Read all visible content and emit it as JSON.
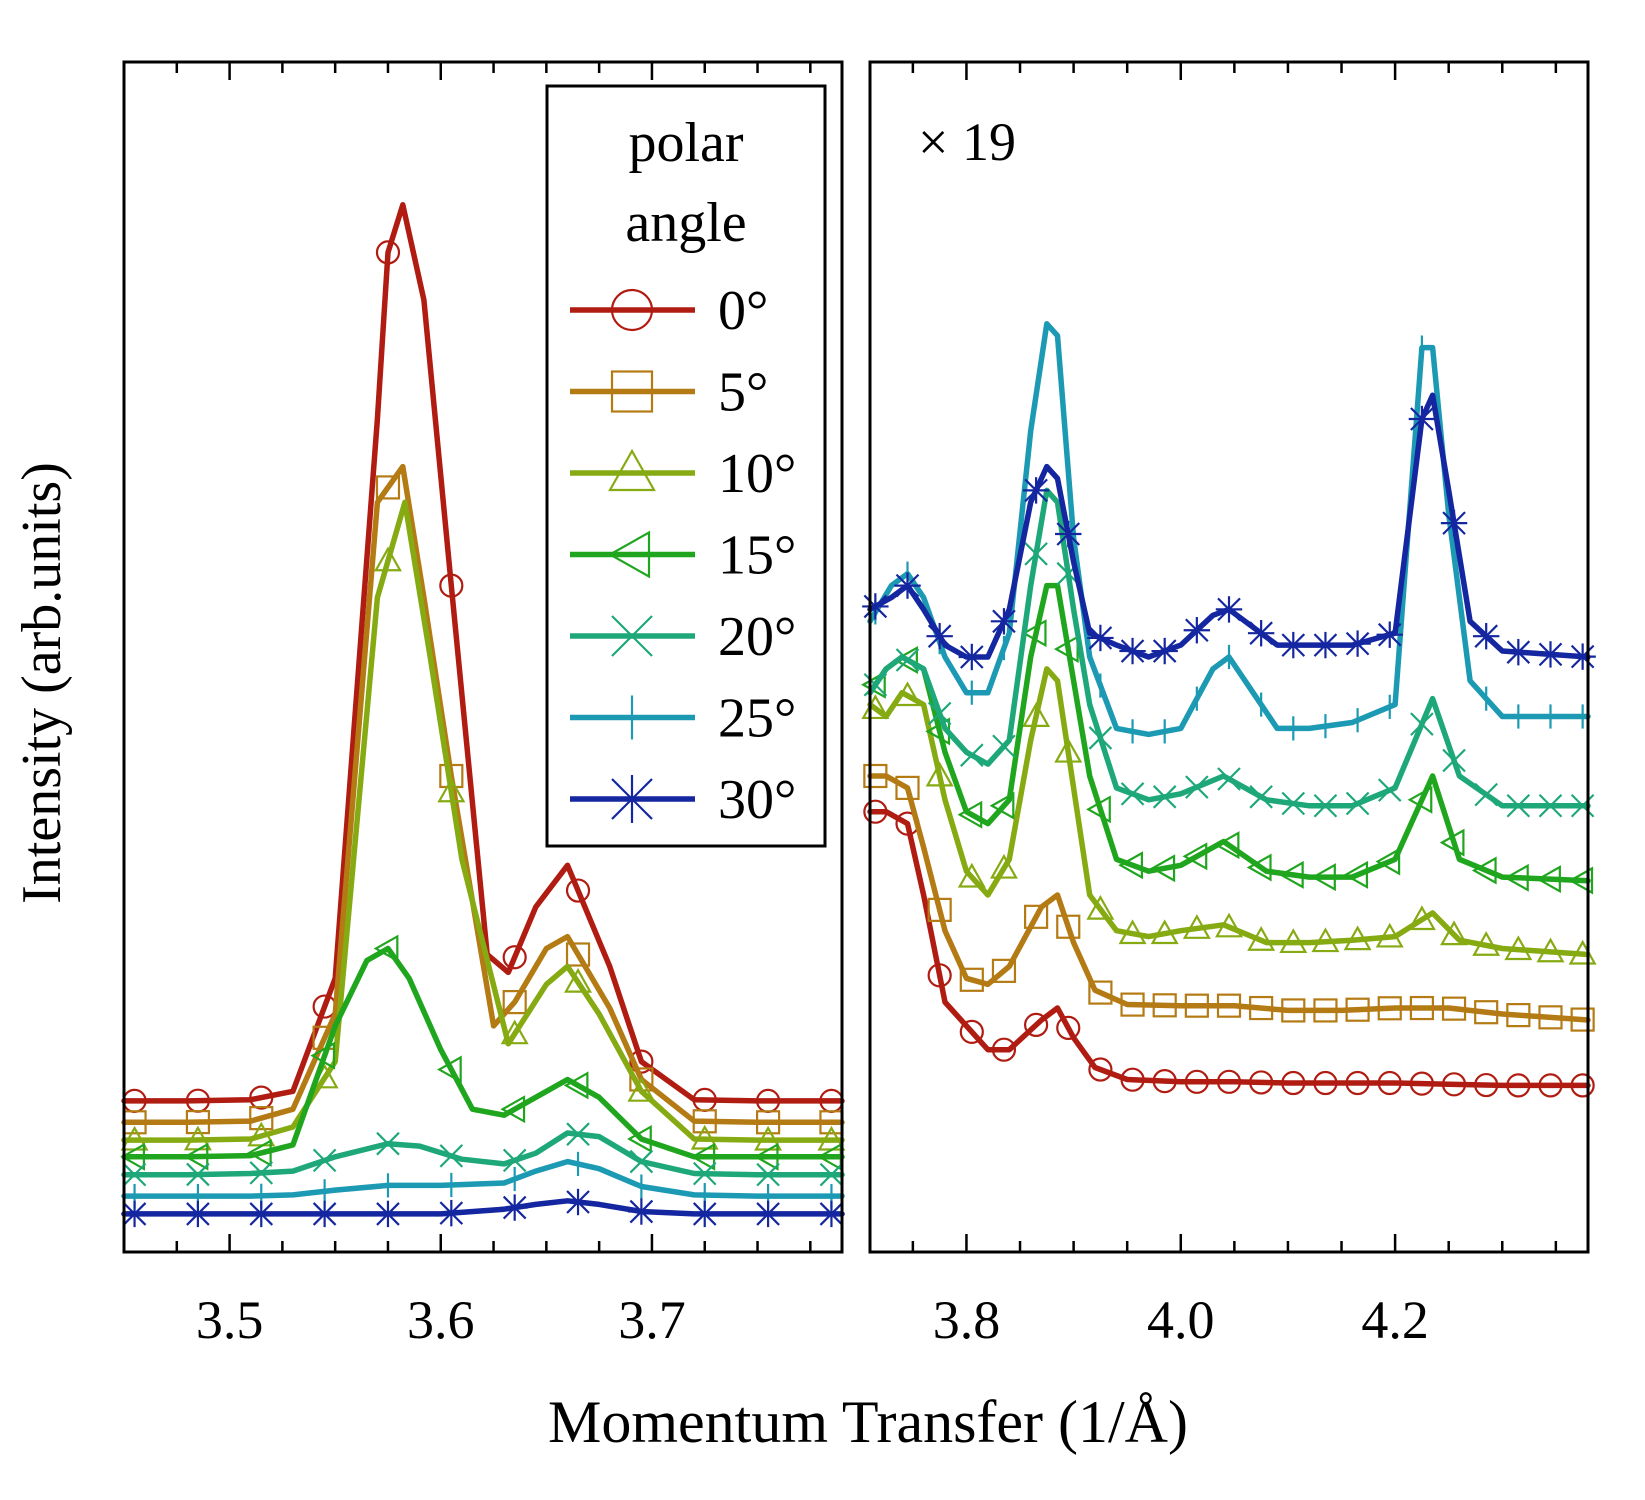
{
  "chart_data": {
    "type": "line",
    "xlabel": "Momentum Transfer  (1/Å)",
    "ylabel": "Intensity  (arb.units)",
    "legend": {
      "title_line1": "polar",
      "title_line2": "angle",
      "placement": "top-right of left panel"
    },
    "series_meta": [
      {
        "name": "0°",
        "color": "#b01c12",
        "marker": "circle"
      },
      {
        "name": "5°",
        "color": "#b47a14",
        "marker": "square"
      },
      {
        "name": "10°",
        "color": "#86aa12",
        "marker": "triangle-up"
      },
      {
        "name": "15°",
        "color": "#20a61e",
        "marker": "triangle-left"
      },
      {
        "name": "20°",
        "color": "#1ea87a",
        "marker": "x"
      },
      {
        "name": "25°",
        "color": "#1c9ab4",
        "marker": "plus"
      },
      {
        "name": "30°",
        "color": "#1426a0",
        "marker": "star"
      }
    ],
    "panels": [
      {
        "id": "left",
        "xlim": [
          3.45,
          3.79
        ],
        "ylim": [
          0,
          1.0
        ],
        "ticks": [
          3.5,
          3.6,
          3.7
        ],
        "tick_labels": [
          "3.5",
          "3.6",
          "3.7"
        ],
        "scale_label": "",
        "series": [
          {
            "name": "0°",
            "x": [
              3.45,
              3.48,
              3.51,
              3.53,
              3.55,
              3.57,
              3.575,
              3.582,
              3.592,
              3.605,
              3.622,
              3.632,
              3.645,
              3.66,
              3.68,
              3.695,
              3.72,
              3.75,
              3.79
            ],
            "y": [
              0.127,
              0.127,
              0.128,
              0.135,
              0.23,
              0.7,
              0.84,
              0.88,
              0.8,
              0.56,
              0.25,
              0.235,
              0.29,
              0.325,
              0.24,
              0.16,
              0.128,
              0.127,
              0.127
            ]
          },
          {
            "name": "5°",
            "x": [
              3.45,
              3.48,
              3.51,
              3.53,
              3.55,
              3.57,
              3.582,
              3.592,
              3.605,
              3.625,
              3.635,
              3.65,
              3.66,
              3.68,
              3.695,
              3.72,
              3.75,
              3.79
            ],
            "y": [
              0.109,
              0.109,
              0.11,
              0.12,
              0.2,
              0.63,
              0.66,
              0.55,
              0.4,
              0.19,
              0.21,
              0.255,
              0.265,
              0.205,
              0.145,
              0.11,
              0.109,
              0.109
            ]
          },
          {
            "name": "10°",
            "x": [
              3.45,
              3.48,
              3.51,
              3.53,
              3.55,
              3.57,
              3.583,
              3.595,
              3.61,
              3.632,
              3.65,
              3.66,
              3.675,
              3.695,
              3.72,
              3.75,
              3.79
            ],
            "y": [
              0.094,
              0.094,
              0.095,
              0.105,
              0.16,
              0.55,
              0.63,
              0.5,
              0.33,
              0.175,
              0.225,
              0.24,
              0.2,
              0.135,
              0.095,
              0.094,
              0.094
            ]
          },
          {
            "name": "15°",
            "x": [
              3.45,
              3.48,
              3.51,
              3.53,
              3.55,
              3.565,
              3.575,
              3.585,
              3.6,
              3.615,
              3.63,
              3.645,
              3.66,
              3.675,
              3.695,
              3.72,
              3.75,
              3.79
            ],
            "y": [
              0.08,
              0.08,
              0.081,
              0.09,
              0.19,
              0.245,
              0.255,
              0.23,
              0.17,
              0.12,
              0.115,
              0.13,
              0.145,
              0.13,
              0.095,
              0.08,
              0.08,
              0.08
            ]
          },
          {
            "name": "20°",
            "x": [
              3.45,
              3.48,
              3.51,
              3.53,
              3.55,
              3.575,
              3.59,
              3.61,
              3.63,
              3.645,
              3.66,
              3.675,
              3.695,
              3.72,
              3.75,
              3.79
            ],
            "y": [
              0.065,
              0.065,
              0.066,
              0.068,
              0.08,
              0.091,
              0.089,
              0.078,
              0.074,
              0.083,
              0.1,
              0.097,
              0.076,
              0.066,
              0.065,
              0.065
            ]
          },
          {
            "name": "25°",
            "x": [
              3.45,
              3.48,
              3.51,
              3.53,
              3.55,
              3.575,
              3.6,
              3.63,
              3.645,
              3.66,
              3.675,
              3.695,
              3.72,
              3.75,
              3.79
            ],
            "y": [
              0.047,
              0.047,
              0.047,
              0.048,
              0.052,
              0.056,
              0.056,
              0.058,
              0.068,
              0.076,
              0.07,
              0.055,
              0.048,
              0.047,
              0.047
            ]
          },
          {
            "name": "30°",
            "x": [
              3.45,
              3.48,
              3.51,
              3.54,
              3.575,
              3.6,
              3.63,
              3.645,
              3.66,
              3.675,
              3.695,
              3.72,
              3.75,
              3.79
            ],
            "y": [
              0.032,
              0.032,
              0.032,
              0.032,
              0.032,
              0.032,
              0.036,
              0.04,
              0.043,
              0.04,
              0.034,
              0.032,
              0.032,
              0.032
            ]
          }
        ]
      },
      {
        "id": "right",
        "xlim": [
          3.71,
          4.38
        ],
        "ylim": [
          0,
          1.0
        ],
        "ticks": [
          3.8,
          4.0,
          4.2
        ],
        "tick_labels": [
          "3.8",
          "4.0",
          "4.2"
        ],
        "scale_label": "× 19",
        "series": [
          {
            "name": "0°",
            "x": [
              3.71,
              3.725,
              3.745,
              3.76,
              3.78,
              3.8,
              3.82,
              3.84,
              3.87,
              3.885,
              3.9,
              3.92,
              3.95,
              4.0,
              4.05,
              4.1,
              4.15,
              4.2,
              4.25,
              4.3,
              4.38
            ],
            "y": [
              0.37,
              0.37,
              0.36,
              0.3,
              0.21,
              0.19,
              0.17,
              0.17,
              0.195,
              0.205,
              0.18,
              0.155,
              0.145,
              0.143,
              0.143,
              0.142,
              0.142,
              0.142,
              0.141,
              0.14,
              0.14
            ]
          },
          {
            "name": "5°",
            "x": [
              3.71,
              3.725,
              3.745,
              3.76,
              3.78,
              3.8,
              3.82,
              3.84,
              3.87,
              3.885,
              3.9,
              3.92,
              3.95,
              4.0,
              4.05,
              4.1,
              4.15,
              4.2,
              4.25,
              4.3,
              4.38
            ],
            "y": [
              0.4,
              0.4,
              0.39,
              0.34,
              0.27,
              0.23,
              0.225,
              0.24,
              0.29,
              0.3,
              0.26,
              0.22,
              0.208,
              0.207,
              0.207,
              0.203,
              0.203,
              0.205,
              0.205,
              0.2,
              0.195
            ]
          },
          {
            "name": "10°",
            "x": [
              3.71,
              3.725,
              3.74,
              3.76,
              3.78,
              3.8,
              3.82,
              3.84,
              3.86,
              3.875,
              3.885,
              3.9,
              3.915,
              3.94,
              3.97,
              4.0,
              4.04,
              4.08,
              4.12,
              4.16,
              4.2,
              4.235,
              4.26,
              4.3,
              4.38
            ],
            "y": [
              0.46,
              0.45,
              0.47,
              0.46,
              0.38,
              0.32,
              0.3,
              0.33,
              0.43,
              0.49,
              0.48,
              0.39,
              0.3,
              0.27,
              0.265,
              0.27,
              0.275,
              0.26,
              0.26,
              0.262,
              0.265,
              0.285,
              0.262,
              0.255,
              0.25
            ]
          },
          {
            "name": "15°",
            "x": [
              3.71,
              3.725,
              3.74,
              3.76,
              3.78,
              3.8,
              3.82,
              3.84,
              3.86,
              3.875,
              3.885,
              3.9,
              3.915,
              3.94,
              3.97,
              4.0,
              4.04,
              4.08,
              4.12,
              4.16,
              4.2,
              4.235,
              4.26,
              4.3,
              4.38
            ],
            "y": [
              0.47,
              0.49,
              0.5,
              0.49,
              0.42,
              0.37,
              0.36,
              0.38,
              0.5,
              0.56,
              0.56,
              0.48,
              0.4,
              0.33,
              0.32,
              0.325,
              0.345,
              0.32,
              0.315,
              0.315,
              0.33,
              0.4,
              0.33,
              0.315,
              0.312
            ]
          },
          {
            "name": "20°",
            "x": [
              3.71,
              3.725,
              3.74,
              3.76,
              3.78,
              3.8,
              3.82,
              3.84,
              3.86,
              3.875,
              3.885,
              3.9,
              3.915,
              3.94,
              3.97,
              4.0,
              4.04,
              4.08,
              4.12,
              4.16,
              4.2,
              4.235,
              4.26,
              4.3,
              4.38
            ],
            "y": [
              0.47,
              0.49,
              0.5,
              0.49,
              0.44,
              0.42,
              0.41,
              0.43,
              0.56,
              0.64,
              0.63,
              0.54,
              0.46,
              0.39,
              0.38,
              0.385,
              0.4,
              0.38,
              0.375,
              0.375,
              0.39,
              0.465,
              0.4,
              0.375,
              0.375
            ]
          },
          {
            "name": "25°",
            "x": [
              3.71,
              3.73,
              3.745,
              3.76,
              3.78,
              3.8,
              3.82,
              3.84,
              3.86,
              3.875,
              3.885,
              3.9,
              3.915,
              3.94,
              3.97,
              4.0,
              4.03,
              4.045,
              4.06,
              4.09,
              4.12,
              4.16,
              4.2,
              4.225,
              4.235,
              4.25,
              4.27,
              4.3,
              4.38
            ],
            "y": [
              0.53,
              0.56,
              0.57,
              0.55,
              0.5,
              0.47,
              0.47,
              0.52,
              0.69,
              0.78,
              0.77,
              0.6,
              0.5,
              0.44,
              0.435,
              0.44,
              0.49,
              0.5,
              0.48,
              0.44,
              0.44,
              0.445,
              0.46,
              0.76,
              0.76,
              0.62,
              0.48,
              0.45,
              0.45
            ]
          },
          {
            "name": "30°",
            "x": [
              3.71,
              3.73,
              3.745,
              3.76,
              3.78,
              3.8,
              3.82,
              3.84,
              3.86,
              3.875,
              3.885,
              3.9,
              3.915,
              3.94,
              3.97,
              4.0,
              4.03,
              4.045,
              4.06,
              4.09,
              4.12,
              4.16,
              4.2,
              4.225,
              4.235,
              4.25,
              4.27,
              4.3,
              4.38
            ],
            "y": [
              0.54,
              0.55,
              0.56,
              0.54,
              0.51,
              0.5,
              0.5,
              0.54,
              0.63,
              0.66,
              0.65,
              0.58,
              0.52,
              0.51,
              0.5,
              0.51,
              0.535,
              0.54,
              0.53,
              0.51,
              0.51,
              0.51,
              0.52,
              0.7,
              0.72,
              0.64,
              0.53,
              0.505,
              0.5
            ]
          }
        ]
      }
    ]
  }
}
